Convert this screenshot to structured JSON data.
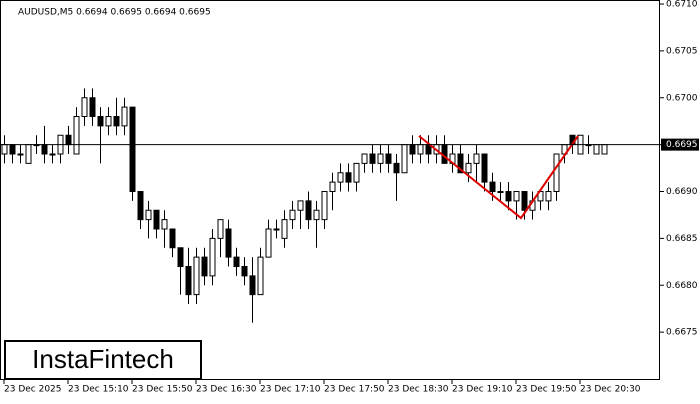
{
  "chart_data": {
    "type": "candlestick",
    "title": "AUDUSD,M5  0.6694 0.6695 0.6694 0.6695",
    "watermark": "InstaFintech",
    "up_color": "#ffffff",
    "down_color": "#000000",
    "line_color": "#000000",
    "last_price": 0.6695,
    "ylim": [
      0.667,
      0.671
    ],
    "yticks": [
      0.6675,
      {
        "value": 0.668,
        "label": "0.6680"
      },
      0.6685,
      {
        "value": 0.669,
        "label": "0.6690"
      },
      0.6695,
      {
        "value": 0.67,
        "label": "0.6700"
      },
      0.6705,
      {
        "value": 0.671,
        "label": "0.6710"
      }
    ],
    "categories": [
      "23 Dec 2025",
      null,
      null,
      null,
      null,
      null,
      null,
      null,
      "23 Dec 15:10",
      null,
      null,
      null,
      null,
      null,
      null,
      null,
      "23 Dec 15:50",
      null,
      null,
      null,
      null,
      null,
      null,
      null,
      "23 Dec 16:30",
      null,
      null,
      null,
      null,
      null,
      null,
      null,
      "23 Dec 17:10",
      null,
      null,
      null,
      null,
      null,
      null,
      null,
      "23 Dec 17:50",
      null,
      null,
      null,
      null,
      null,
      null,
      null,
      "23 Dec 18:30",
      null,
      null,
      null,
      null,
      null,
      null,
      null,
      "23 Dec 19:10",
      null,
      null,
      null,
      null,
      null,
      null,
      null,
      "23 Dec 19:50",
      null,
      null,
      null,
      null,
      null,
      null,
      null,
      "23 Dec 20:30",
      null,
      null,
      null
    ],
    "open": [
      0.6694,
      0.6695,
      0.6694,
      0.6693,
      0.6695,
      0.6695,
      0.6694,
      0.6694,
      0.6696,
      0.6694,
      0.6698,
      0.67,
      0.6698,
      0.6697,
      0.6698,
      0.6697,
      0.6699,
      0.669,
      0.6687,
      0.6688,
      0.6686,
      0.6686,
      0.6684,
      0.6682,
      0.6679,
      0.6683,
      0.6681,
      0.6685,
      0.6686,
      0.6683,
      0.6682,
      0.6681,
      0.6679,
      0.6683,
      0.6686,
      0.6685,
      0.6687,
      0.6688,
      0.6689,
      0.6687,
      0.6687,
      0.669,
      0.6691,
      0.6692,
      0.6691,
      0.6693,
      0.6694,
      0.6693,
      0.6694,
      0.6693,
      0.6692,
      0.6695,
      0.6694,
      0.6695,
      0.6694,
      0.6695,
      0.6693,
      0.6694,
      0.6692,
      0.6693,
      0.6694,
      0.6691,
      0.669,
      0.669,
      0.6689,
      0.669,
      0.6688,
      0.6689,
      0.6689,
      0.669,
      0.6694,
      0.6696,
      0.6694,
      0.6695,
      0.6694,
      0.6694
    ],
    "high": [
      0.6696,
      0.6695,
      0.6695,
      0.6695,
      0.6696,
      0.6697,
      0.6695,
      0.6696,
      0.6697,
      0.6699,
      0.6701,
      0.6701,
      0.6699,
      0.6699,
      0.67,
      0.67,
      0.6699,
      0.669,
      0.6689,
      0.6688,
      0.6688,
      0.6686,
      0.6684,
      0.6684,
      0.6684,
      0.6684,
      0.6686,
      0.6687,
      0.6687,
      0.6684,
      0.6683,
      0.6683,
      0.6684,
      0.6687,
      0.6687,
      0.6688,
      0.6689,
      0.6689,
      0.669,
      0.6689,
      0.669,
      0.6692,
      0.6693,
      0.6693,
      0.6693,
      0.6694,
      0.6695,
      0.6695,
      0.6695,
      0.6694,
      0.6695,
      0.6696,
      0.6696,
      0.6696,
      0.6696,
      0.6696,
      0.6695,
      0.6695,
      0.6694,
      0.6695,
      0.6694,
      0.6692,
      0.6691,
      0.6691,
      0.669,
      0.669,
      0.669,
      0.669,
      0.6691,
      0.6694,
      0.6695,
      0.6696,
      0.6696,
      0.6696,
      0.6695,
      0.6695
    ],
    "low": [
      0.6693,
      0.6693,
      0.6693,
      0.6693,
      0.6694,
      0.6693,
      0.6693,
      0.6693,
      0.6694,
      0.6694,
      0.6697,
      0.6697,
      0.6693,
      0.6696,
      0.6696,
      0.6696,
      0.6689,
      0.6686,
      0.6685,
      0.6685,
      0.6684,
      0.6683,
      0.6679,
      0.6678,
      0.6678,
      0.668,
      0.668,
      0.6683,
      0.6682,
      0.6681,
      0.668,
      0.6676,
      0.6679,
      0.6683,
      0.6685,
      0.6684,
      0.6686,
      0.6686,
      0.6686,
      0.6684,
      0.6686,
      0.6688,
      0.669,
      0.669,
      0.669,
      0.6692,
      0.6692,
      0.6692,
      0.6692,
      0.6689,
      0.6692,
      0.6693,
      0.6693,
      0.6693,
      0.6693,
      0.6693,
      0.6692,
      0.6692,
      0.6691,
      0.6691,
      0.669,
      0.6689,
      0.6689,
      0.6688,
      0.6687,
      0.6687,
      0.6687,
      0.6688,
      0.6688,
      0.6689,
      0.6693,
      0.6694,
      0.6694,
      0.6694,
      0.6694,
      0.6694
    ],
    "close": [
      0.6695,
      0.6694,
      0.6694,
      0.6695,
      0.6695,
      0.6694,
      0.6694,
      0.6696,
      0.6695,
      0.6698,
      0.67,
      0.6698,
      0.6697,
      0.6698,
      0.6697,
      0.6699,
      0.669,
      0.6687,
      0.6688,
      0.6686,
      0.6687,
      0.6684,
      0.6682,
      0.6679,
      0.6683,
      0.6681,
      0.6685,
      0.6687,
      0.6683,
      0.6682,
      0.6681,
      0.6679,
      0.6683,
      0.6686,
      0.6686,
      0.6687,
      0.6688,
      0.6689,
      0.6687,
      0.6688,
      0.669,
      0.6691,
      0.6692,
      0.6691,
      0.6693,
      0.6694,
      0.6693,
      0.6694,
      0.6693,
      0.6692,
      0.6695,
      0.6694,
      0.6695,
      0.6694,
      0.6695,
      0.6693,
      0.6694,
      0.6692,
      0.6693,
      0.6694,
      0.6691,
      0.669,
      0.669,
      0.6689,
      0.669,
      0.6688,
      0.6689,
      0.669,
      0.669,
      0.6694,
      0.6695,
      0.6695,
      0.6696,
      0.6695,
      0.6695,
      0.6695
    ]
  }
}
